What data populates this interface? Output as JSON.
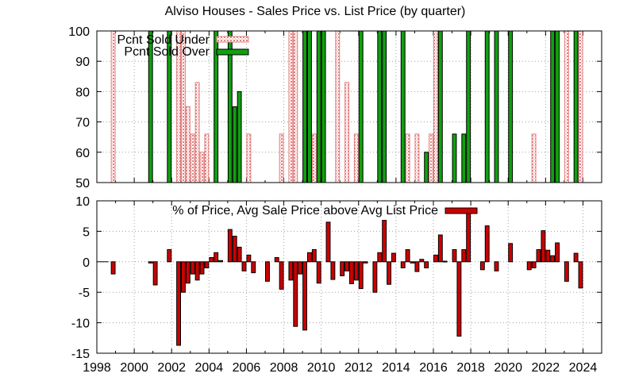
{
  "title": "Alviso Houses - Sales Price vs. List Price (by quarter)",
  "colors": {
    "under_fill": "#ffd0d0",
    "under_stroke": "#e08080",
    "over_fill": "#10a010",
    "diff_fill": "#cc0000"
  },
  "chart_data": [
    {
      "type": "bar",
      "legend_position": "top-left",
      "grid": true,
      "xlim": [
        1998,
        2025
      ],
      "ylim": [
        50,
        100
      ],
      "y_ticks": [
        "50",
        "60",
        "70",
        "80",
        "90",
        "100"
      ],
      "series": [
        {
          "name": "Pcnt Sold Under",
          "points": [
            [
              1998.875,
              100
            ],
            [
              2002.375,
              100
            ],
            [
              2002.625,
              100
            ],
            [
              2002.875,
              75
            ],
            [
              2003.125,
              66
            ],
            [
              2003.375,
              83
            ],
            [
              2003.625,
              60
            ],
            [
              2003.875,
              66
            ],
            [
              2006.125,
              66
            ],
            [
              2007.875,
              66
            ],
            [
              2008.375,
              100
            ],
            [
              2008.625,
              100
            ],
            [
              2009.625,
              66
            ],
            [
              2010.875,
              100
            ],
            [
              2011.375,
              83
            ],
            [
              2011.875,
              66
            ],
            [
              2014.625,
              66
            ],
            [
              2015.125,
              66
            ],
            [
              2015.875,
              66
            ],
            [
              2016.125,
              100
            ],
            [
              2021.375,
              66
            ],
            [
              2023.125,
              100
            ],
            [
              2023.875,
              100
            ]
          ]
        },
        {
          "name": "Pcnt Sold Over",
          "points": [
            [
              2000.875,
              100
            ],
            [
              2001.875,
              100
            ],
            [
              2004.375,
              100
            ],
            [
              2005.125,
              100
            ],
            [
              2005.375,
              75
            ],
            [
              2005.625,
              80
            ],
            [
              2009.125,
              100
            ],
            [
              2009.375,
              100
            ],
            [
              2009.875,
              100
            ],
            [
              2010.125,
              100
            ],
            [
              2012.125,
              100
            ],
            [
              2013.125,
              100
            ],
            [
              2013.375,
              100
            ],
            [
              2014.375,
              100
            ],
            [
              2015.625,
              60
            ],
            [
              2016.375,
              100
            ],
            [
              2017.125,
              66
            ],
            [
              2017.625,
              66
            ],
            [
              2017.875,
              100
            ],
            [
              2018.875,
              100
            ],
            [
              2019.375,
              100
            ],
            [
              2020.125,
              100
            ],
            [
              2022.375,
              100
            ],
            [
              2022.625,
              100
            ],
            [
              2023.625,
              100
            ]
          ]
        }
      ]
    },
    {
      "type": "bar",
      "legend_position": "top-center",
      "grid": true,
      "xlim": [
        1998,
        2025
      ],
      "ylim": [
        -15,
        10
      ],
      "y_ticks": [
        "-15",
        "-10",
        "-5",
        "0",
        "5",
        "10"
      ],
      "x_ticks": [
        "1998",
        "2000",
        "2002",
        "2004",
        "2006",
        "2008",
        "2010",
        "2012",
        "2014",
        "2016",
        "2018",
        "2020",
        "2022",
        "2024"
      ],
      "series": [
        {
          "name": "% of Price, Avg Sale Price above Avg List Price",
          "points": [
            [
              1998.875,
              -2
            ],
            [
              2000.875,
              -0.2
            ],
            [
              2001.125,
              -3.8
            ],
            [
              2001.875,
              2
            ],
            [
              2002.375,
              -13.7
            ],
            [
              2002.625,
              -5
            ],
            [
              2002.875,
              -3.5
            ],
            [
              2003.125,
              -2
            ],
            [
              2003.375,
              -3
            ],
            [
              2003.625,
              -2
            ],
            [
              2003.875,
              -1
            ],
            [
              2004.125,
              0.7
            ],
            [
              2004.375,
              1.5
            ],
            [
              2004.625,
              0.2
            ],
            [
              2005.125,
              5.3
            ],
            [
              2005.375,
              4.2
            ],
            [
              2005.625,
              2.4
            ],
            [
              2005.875,
              -1.5
            ],
            [
              2006.125,
              1.1
            ],
            [
              2006.375,
              -1.8
            ],
            [
              2007.125,
              -3.2
            ],
            [
              2007.625,
              0.7
            ],
            [
              2007.875,
              -4.5
            ],
            [
              2008.375,
              -3
            ],
            [
              2008.625,
              -10.6
            ],
            [
              2008.875,
              -2
            ],
            [
              2009.125,
              -11.2
            ],
            [
              2009.375,
              1.5
            ],
            [
              2009.625,
              2
            ],
            [
              2009.875,
              -3.5
            ],
            [
              2010.375,
              6.5
            ],
            [
              2010.625,
              -2.9
            ],
            [
              2011.125,
              -2.3
            ],
            [
              2011.375,
              -1.5
            ],
            [
              2011.625,
              -3.6
            ],
            [
              2011.875,
              -3
            ],
            [
              2012.125,
              -4.4
            ],
            [
              2012.375,
              -0.2
            ],
            [
              2012.875,
              -5
            ],
            [
              2013.125,
              1.5
            ],
            [
              2013.375,
              6.8
            ],
            [
              2013.625,
              -3.7
            ],
            [
              2013.875,
              1.4
            ],
            [
              2014.375,
              -1
            ],
            [
              2014.625,
              2
            ],
            [
              2014.875,
              -0.2
            ],
            [
              2015.125,
              -1.6
            ],
            [
              2015.375,
              0.4
            ],
            [
              2015.625,
              -1
            ],
            [
              2016.125,
              1.1
            ],
            [
              2016.375,
              4.4
            ],
            [
              2016.625,
              0.1
            ],
            [
              2017.125,
              2
            ],
            [
              2017.375,
              -12.2
            ],
            [
              2017.625,
              2
            ],
            [
              2017.875,
              8.5
            ],
            [
              2018.625,
              -1.3
            ],
            [
              2018.875,
              5.9
            ],
            [
              2019.375,
              -1.5
            ],
            [
              2020.125,
              3
            ],
            [
              2021.125,
              -1.3
            ],
            [
              2021.375,
              -1
            ],
            [
              2021.625,
              2
            ],
            [
              2021.875,
              5.1
            ],
            [
              2022.125,
              1.9
            ],
            [
              2022.375,
              1
            ],
            [
              2022.625,
              3.1
            ],
            [
              2023.125,
              -3.2
            ],
            [
              2023.625,
              1.4
            ],
            [
              2023.875,
              -4.3
            ]
          ]
        }
      ]
    }
  ]
}
